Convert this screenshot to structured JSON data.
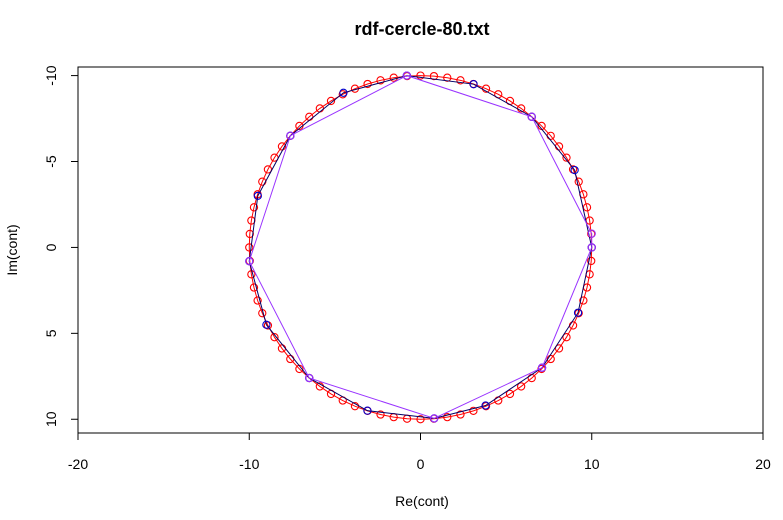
{
  "chart_data": {
    "type": "scatter",
    "title": "rdf-cercle-80.txt",
    "xlabel": "Re(cont)",
    "ylabel": "Im(cont)",
    "xlim": [
      -20,
      20
    ],
    "ylim": [
      -10.5,
      10.8
    ],
    "y_axis_inverted": true,
    "x_ticks": [
      -20,
      -10,
      0,
      10,
      20
    ],
    "x_tick_labels": [
      "-20",
      "-10",
      "0",
      "10",
      "20"
    ],
    "y_ticks": [
      -10,
      -5,
      0,
      5,
      10
    ],
    "y_tick_labels": [
      "-10",
      "-5",
      "0",
      "5",
      "10"
    ],
    "grid": false,
    "legend": "none",
    "series": [
      {
        "marker": "open-circle",
        "color": "#ff0000",
        "line_color": "#ff0000",
        "points": [
          [
            10,
            0
          ],
          [
            9.969,
            0.785
          ],
          [
            9.877,
            1.564
          ],
          [
            9.724,
            2.334
          ],
          [
            9.511,
            3.09
          ],
          [
            9.239,
            3.827
          ],
          [
            8.91,
            4.54
          ],
          [
            8.526,
            5.225
          ],
          [
            8.09,
            5.878
          ],
          [
            7.604,
            6.494
          ],
          [
            7.071,
            7.071
          ],
          [
            6.494,
            7.604
          ],
          [
            5.878,
            8.09
          ],
          [
            5.225,
            8.526
          ],
          [
            4.54,
            8.91
          ],
          [
            3.827,
            9.239
          ],
          [
            3.09,
            9.511
          ],
          [
            2.334,
            9.724
          ],
          [
            1.564,
            9.877
          ],
          [
            0.785,
            9.969
          ],
          [
            0,
            10
          ],
          [
            -0.785,
            9.969
          ],
          [
            -1.564,
            9.877
          ],
          [
            -2.334,
            9.724
          ],
          [
            -3.09,
            9.511
          ],
          [
            -3.827,
            9.239
          ],
          [
            -4.54,
            8.91
          ],
          [
            -5.225,
            8.526
          ],
          [
            -5.878,
            8.09
          ],
          [
            -6.494,
            7.604
          ],
          [
            -7.071,
            7.071
          ],
          [
            -7.604,
            6.494
          ],
          [
            -8.09,
            5.878
          ],
          [
            -8.526,
            5.225
          ],
          [
            -8.91,
            4.54
          ],
          [
            -9.239,
            3.827
          ],
          [
            -9.511,
            3.09
          ],
          [
            -9.724,
            2.334
          ],
          [
            -9.877,
            1.564
          ],
          [
            -9.969,
            0.785
          ],
          [
            -10,
            0
          ],
          [
            -9.969,
            -0.785
          ],
          [
            -9.877,
            -1.564
          ],
          [
            -9.724,
            -2.334
          ],
          [
            -9.511,
            -3.09
          ],
          [
            -9.239,
            -3.827
          ],
          [
            -8.91,
            -4.54
          ],
          [
            -8.526,
            -5.225
          ],
          [
            -8.09,
            -5.878
          ],
          [
            -7.604,
            -6.494
          ],
          [
            -7.071,
            -7.071
          ],
          [
            -6.494,
            -7.604
          ],
          [
            -5.878,
            -8.09
          ],
          [
            -5.225,
            -8.526
          ],
          [
            -4.54,
            -8.91
          ],
          [
            -3.827,
            -9.239
          ],
          [
            -3.09,
            -9.511
          ],
          [
            -2.334,
            -9.724
          ],
          [
            -1.564,
            -9.877
          ],
          [
            -0.785,
            -9.969
          ],
          [
            0,
            -10
          ],
          [
            0.785,
            -9.969
          ],
          [
            1.564,
            -9.877
          ],
          [
            2.334,
            -9.724
          ],
          [
            3.09,
            -9.511
          ],
          [
            3.827,
            -9.239
          ],
          [
            4.54,
            -8.91
          ],
          [
            5.225,
            -8.526
          ],
          [
            5.878,
            -8.09
          ],
          [
            6.494,
            -7.604
          ],
          [
            7.071,
            -7.071
          ],
          [
            7.604,
            -6.494
          ],
          [
            8.09,
            -5.878
          ],
          [
            8.526,
            -5.225
          ],
          [
            8.91,
            -4.54
          ],
          [
            9.239,
            -3.827
          ],
          [
            9.511,
            -3.09
          ],
          [
            9.724,
            -2.334
          ],
          [
            9.877,
            -1.564
          ],
          [
            9.969,
            -0.785
          ]
        ]
      },
      {
        "marker": "open-circle",
        "color": "#0000cc",
        "line_color": "#000066",
        "points": [
          [
            10,
            0
          ],
          [
            9.2,
            3.8
          ],
          [
            7.1,
            7.0
          ],
          [
            3.8,
            9.2
          ],
          [
            0.8,
            9.95
          ],
          [
            -3.1,
            9.5
          ],
          [
            -6.5,
            7.6
          ],
          [
            -9.0,
            4.5
          ],
          [
            -10.0,
            0.8
          ],
          [
            -9.5,
            -3.0
          ],
          [
            -7.6,
            -6.5
          ],
          [
            -4.5,
            -9.0
          ],
          [
            -0.8,
            -10.0
          ],
          [
            3.1,
            -9.5
          ],
          [
            6.5,
            -7.6
          ],
          [
            9.0,
            -4.5
          ]
        ]
      },
      {
        "marker": "open-circle",
        "color": "#9933ff",
        "line_color": "#9933ff",
        "points": [
          [
            10,
            0
          ],
          [
            7.1,
            7.0
          ],
          [
            0.8,
            9.95
          ],
          [
            -6.5,
            7.6
          ],
          [
            -10.0,
            0.8
          ],
          [
            -7.6,
            -6.5
          ],
          [
            -0.8,
            -10.0
          ],
          [
            6.5,
            -7.6
          ],
          [
            10.0,
            -0.8
          ]
        ]
      }
    ]
  }
}
